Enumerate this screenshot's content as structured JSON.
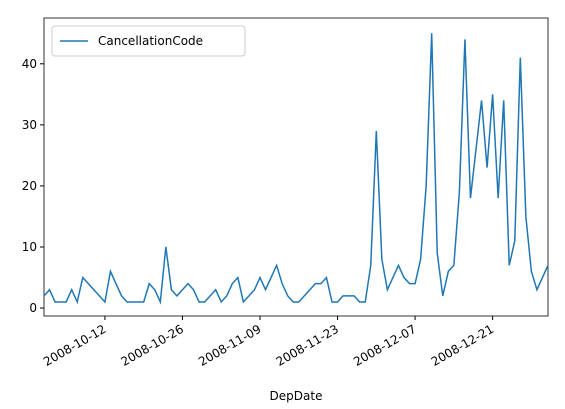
{
  "chart_data": {
    "type": "line",
    "xlabel": "DepDate",
    "x": [
      "2008-10-01",
      "2008-10-02",
      "2008-10-03",
      "2008-10-04",
      "2008-10-05",
      "2008-10-06",
      "2008-10-07",
      "2008-10-08",
      "2008-10-09",
      "2008-10-10",
      "2008-10-11",
      "2008-10-12",
      "2008-10-13",
      "2008-10-14",
      "2008-10-15",
      "2008-10-16",
      "2008-10-17",
      "2008-10-18",
      "2008-10-19",
      "2008-10-20",
      "2008-10-21",
      "2008-10-22",
      "2008-10-23",
      "2008-10-24",
      "2008-10-25",
      "2008-10-26",
      "2008-10-27",
      "2008-10-28",
      "2008-10-29",
      "2008-10-30",
      "2008-10-31",
      "2008-11-01",
      "2008-11-02",
      "2008-11-03",
      "2008-11-04",
      "2008-11-05",
      "2008-11-06",
      "2008-11-07",
      "2008-11-08",
      "2008-11-09",
      "2008-11-10",
      "2008-11-11",
      "2008-11-12",
      "2008-11-13",
      "2008-11-14",
      "2008-11-15",
      "2008-11-16",
      "2008-11-17",
      "2008-11-18",
      "2008-11-19",
      "2008-11-20",
      "2008-11-21",
      "2008-11-22",
      "2008-11-23",
      "2008-11-24",
      "2008-11-25",
      "2008-11-26",
      "2008-11-27",
      "2008-11-28",
      "2008-11-29",
      "2008-11-30",
      "2008-12-01",
      "2008-12-02",
      "2008-12-03",
      "2008-12-04",
      "2008-12-05",
      "2008-12-06",
      "2008-12-07",
      "2008-12-08",
      "2008-12-09",
      "2008-12-10",
      "2008-12-11",
      "2008-12-12",
      "2008-12-13",
      "2008-12-14",
      "2008-12-15",
      "2008-12-16",
      "2008-12-17",
      "2008-12-18",
      "2008-12-19",
      "2008-12-20",
      "2008-12-21",
      "2008-12-22",
      "2008-12-23",
      "2008-12-24",
      "2008-12-25",
      "2008-12-26",
      "2008-12-27",
      "2008-12-28",
      "2008-12-29",
      "2008-12-30",
      "2008-12-31"
    ],
    "series": [
      {
        "name": "CancellationCode",
        "color": "#1f77b4",
        "values": [
          2,
          3,
          1,
          1,
          1,
          3,
          1,
          5,
          4,
          3,
          2,
          1,
          6,
          4,
          2,
          1,
          1,
          1,
          1,
          4,
          3,
          1,
          10,
          3,
          2,
          3,
          4,
          3,
          1,
          1,
          2,
          3,
          1,
          2,
          4,
          5,
          1,
          2,
          3,
          5,
          3,
          5,
          7,
          4,
          2,
          1,
          1,
          2,
          3,
          4,
          4,
          5,
          1,
          1,
          2,
          2,
          2,
          1,
          1,
          7,
          29,
          8,
          3,
          5,
          7,
          5,
          4,
          4,
          8,
          20,
          45,
          9,
          2,
          6,
          7,
          19,
          44,
          18,
          26,
          34,
          23,
          35,
          18,
          34,
          7,
          11,
          41,
          15,
          6,
          3,
          5,
          7
        ]
      }
    ],
    "xlim": [
      "2008-10-01",
      "2008-12-31"
    ],
    "xticks": [
      "2008-10-12",
      "2008-10-26",
      "2008-11-09",
      "2008-11-23",
      "2008-12-07",
      "2008-12-21"
    ],
    "ylim": [
      -1.3,
      47.5
    ],
    "yticks": [
      0,
      10,
      20,
      30,
      40
    ],
    "legend": "upper left"
  }
}
